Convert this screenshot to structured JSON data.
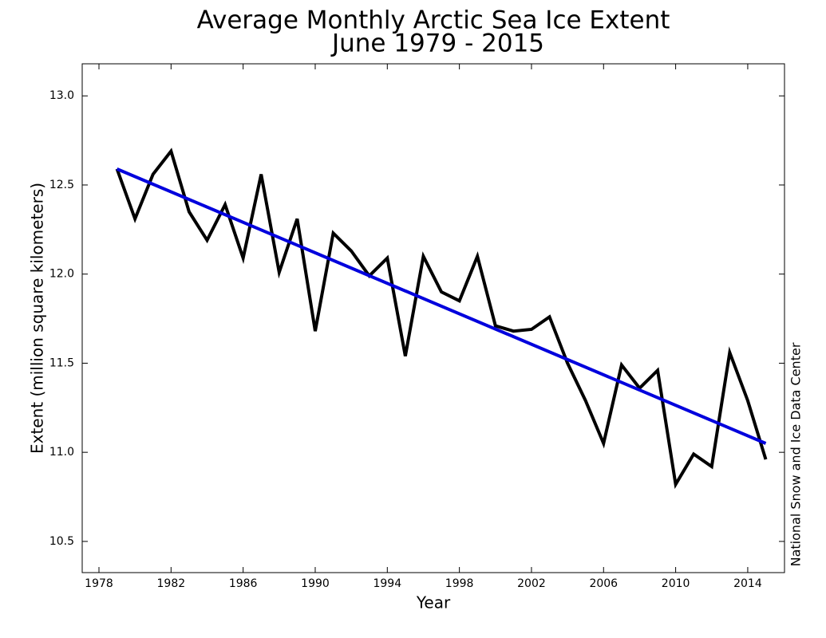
{
  "chart_data": {
    "type": "line",
    "title": "Average Monthly Arctic Sea Ice Extent",
    "subtitle": "June 1979 - 2015",
    "x_label": "Year",
    "y_label": "Extent (million square kilometers)",
    "annotation": "National Snow and Ice Data Center",
    "series": [
      {
        "color": "#000000",
        "x": [
          1979,
          1980,
          1981,
          1982,
          1983,
          1984,
          1985,
          1986,
          1987,
          1988,
          1989,
          1990,
          1991,
          1992,
          1993,
          1994,
          1995,
          1996,
          1997,
          1998,
          1999,
          2000,
          2001,
          2002,
          2003,
          2004,
          2005,
          2006,
          2007,
          2008,
          2009,
          2010,
          2011,
          2012,
          2013,
          2014,
          2015
        ],
        "values": [
          12.59,
          12.31,
          12.56,
          12.69,
          12.35,
          12.19,
          12.39,
          12.09,
          12.56,
          12.01,
          12.31,
          11.68,
          12.23,
          12.13,
          11.99,
          12.09,
          11.54,
          12.1,
          11.9,
          11.85,
          12.1,
          11.71,
          11.68,
          11.69,
          11.76,
          11.5,
          11.29,
          11.05,
          11.49,
          11.36,
          11.46,
          10.82,
          10.99,
          10.92,
          11.56,
          11.29,
          10.96
        ]
      },
      {
        "color": "#0000dd",
        "x": [
          1979,
          2015
        ],
        "values": [
          12.59,
          11.05
        ]
      }
    ],
    "xlim": [
      1977.07,
      2016.04
    ],
    "ylim": [
      10.325,
      13.18
    ],
    "xticks": [
      1978,
      1982,
      1986,
      1990,
      1994,
      1998,
      2002,
      2006,
      2010,
      2014
    ],
    "yticks": [
      10.5,
      {
        "value": 11.0,
        "label": "11.0"
      },
      11.5,
      {
        "value": 12.0,
        "label": "12.0"
      },
      12.5,
      {
        "value": 13.0,
        "label": "13.0"
      }
    ],
    "grid": false
  }
}
